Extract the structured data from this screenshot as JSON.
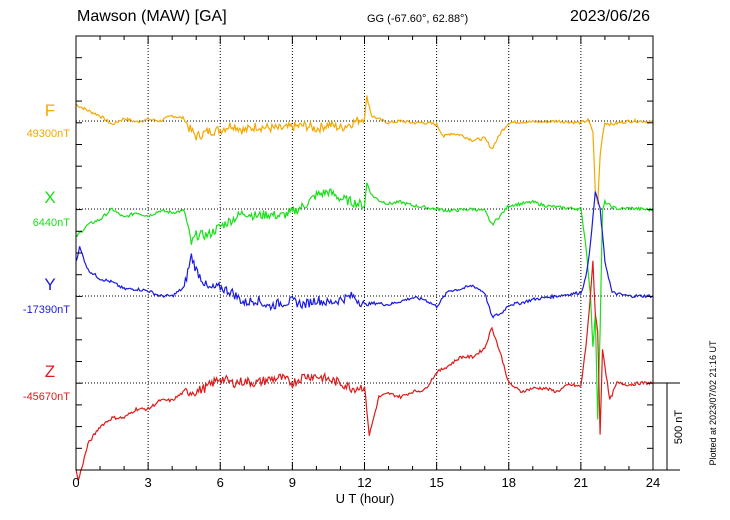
{
  "header": {
    "station": "Mawson (MAW)  [GA]",
    "coords": "GG (-67.60°,  62.88°)",
    "date": "2023/06/26"
  },
  "plotted_note": "Plotted at 2023/07/02 21:16 UT",
  "chart_data": {
    "type": "line",
    "title": "Mawson (MAW)  [GA]",
    "xlabel": "U T (hour)",
    "xlim": [
      0,
      24
    ],
    "xticks": [
      "0",
      "3",
      "6",
      "9",
      "12",
      "15",
      "18",
      "21",
      "24"
    ],
    "grid": true,
    "scale_bar": {
      "value": 500,
      "label": "500 nT"
    },
    "series": [
      {
        "name": "F",
        "baseline_label": "49300nT",
        "color": "#f5a800",
        "x": [
          0,
          0.5,
          1,
          1.5,
          2,
          2.5,
          3,
          3.5,
          4,
          4.5,
          4.7,
          5,
          5.5,
          6,
          6.5,
          7,
          7.5,
          8,
          8.5,
          9,
          9.5,
          10,
          10.5,
          11,
          11.5,
          12,
          12.1,
          12.3,
          12.6,
          13,
          13.5,
          14,
          14.5,
          15,
          15.3,
          15.6,
          16,
          16.5,
          17,
          17.3,
          17.7,
          18,
          18.5,
          19,
          19.5,
          20,
          20.5,
          21,
          21.3,
          21.5,
          21.6,
          21.7,
          21.8,
          21.9,
          22,
          22.3,
          22.6,
          23,
          23.5,
          24
        ],
        "values": [
          95,
          60,
          30,
          -20,
          15,
          -5,
          10,
          0,
          30,
          15,
          -40,
          -90,
          -60,
          -50,
          -20,
          -55,
          -30,
          -40,
          -45,
          -35,
          -25,
          -45,
          -20,
          -40,
          -10,
          20,
          140,
          30,
          10,
          -10,
          0,
          -10,
          -10,
          -20,
          -90,
          -70,
          -80,
          -110,
          -100,
          -160,
          -60,
          -10,
          -5,
          -5,
          -5,
          0,
          -5,
          -10,
          5,
          -60,
          -400,
          -480,
          -200,
          -80,
          -10,
          -20,
          -10,
          0,
          0,
          -5
        ]
      },
      {
        "name": "X",
        "baseline_label": "6440nT",
        "color": "#19e019",
        "x": [
          0,
          0.5,
          1,
          1.5,
          2,
          2.5,
          3,
          3.5,
          4,
          4.5,
          4.8,
          5,
          5.5,
          6,
          6.5,
          7,
          7.5,
          8,
          8.5,
          9,
          9.5,
          10,
          10.5,
          11,
          11.5,
          12,
          12.1,
          12.3,
          12.6,
          13,
          13.5,
          14,
          14.5,
          15,
          15.5,
          16,
          16.5,
          17,
          17.3,
          17.7,
          18,
          18.5,
          19,
          19.5,
          20,
          20.5,
          21,
          21.2,
          21.4,
          21.5,
          21.6,
          21.7,
          21.8,
          21.9,
          22,
          22.3,
          22.6,
          23,
          23.5,
          24
        ],
        "values": [
          -160,
          -90,
          -60,
          0,
          -50,
          -20,
          -40,
          -10,
          -20,
          -10,
          -200,
          -150,
          -150,
          -100,
          -60,
          -20,
          -40,
          -30,
          -40,
          -20,
          20,
          80,
          100,
          60,
          40,
          20,
          150,
          80,
          50,
          30,
          40,
          20,
          10,
          0,
          -10,
          -5,
          0,
          -10,
          -90,
          -30,
          20,
          30,
          40,
          20,
          10,
          5,
          0,
          -200,
          -500,
          -800,
          -600,
          -1200,
          -700,
          -10,
          40,
          10,
          0,
          5,
          0,
          -5
        ]
      },
      {
        "name": "Y",
        "baseline_label": "-17390nT",
        "color": "#1a1ae0",
        "x": [
          0,
          0.15,
          0.5,
          1,
          1.5,
          2,
          2.5,
          3,
          3.5,
          4,
          4.5,
          4.8,
          5,
          5.5,
          6,
          6.5,
          7,
          7.5,
          8,
          8.5,
          9,
          9.5,
          10,
          10.5,
          11,
          11.5,
          12,
          12.5,
          13,
          13.5,
          14,
          14.5,
          15,
          15.5,
          16,
          16.5,
          17,
          17.3,
          17.7,
          18,
          18.5,
          19,
          19.5,
          20,
          20.5,
          21,
          21.2,
          21.4,
          21.6,
          21.8,
          22,
          22.3,
          22.6,
          23,
          23.5,
          24
        ],
        "values": [
          200,
          280,
          150,
          100,
          80,
          40,
          40,
          30,
          0,
          0,
          50,
          230,
          150,
          40,
          50,
          20,
          -40,
          -20,
          -60,
          -40,
          -30,
          -50,
          -20,
          -40,
          -20,
          0,
          -50,
          -40,
          -50,
          -30,
          -10,
          -20,
          -60,
          30,
          40,
          60,
          20,
          -120,
          -100,
          -50,
          -40,
          -20,
          -10,
          0,
          10,
          20,
          100,
          300,
          600,
          500,
          200,
          20,
          10,
          0,
          0,
          0
        ]
      },
      {
        "name": "Z",
        "baseline_label": "-45670nT",
        "color": "#e01a1a",
        "x": [
          0,
          0.1,
          0.5,
          1,
          1.5,
          2,
          2.5,
          3,
          3.5,
          4,
          4.5,
          5,
          5.5,
          6,
          6.5,
          7,
          7.5,
          8,
          8.5,
          9,
          9.5,
          10,
          10.5,
          11,
          11.5,
          12,
          12.2,
          12.6,
          13,
          13.5,
          14,
          14.5,
          15,
          15.5,
          16,
          16.5,
          17,
          17.3,
          17.7,
          18,
          18.5,
          19,
          19.5,
          20,
          20.5,
          21,
          21.2,
          21.4,
          21.5,
          21.6,
          21.7,
          21.8,
          21.9,
          22,
          22.2,
          22.5,
          23,
          23.5,
          24
        ],
        "values": [
          -500,
          -560,
          -350,
          -250,
          -200,
          -200,
          -150,
          -150,
          -100,
          -100,
          -50,
          -50,
          -20,
          30,
          0,
          10,
          0,
          20,
          30,
          0,
          40,
          40,
          20,
          0,
          -30,
          -20,
          -300,
          -80,
          -60,
          -80,
          -50,
          -40,
          60,
          100,
          150,
          150,
          200,
          320,
          150,
          0,
          -50,
          -30,
          -30,
          -50,
          -10,
          -20,
          200,
          500,
          700,
          400,
          300,
          -300,
          200,
          100,
          -100,
          0,
          -10,
          0,
          0
        ]
      }
    ]
  }
}
